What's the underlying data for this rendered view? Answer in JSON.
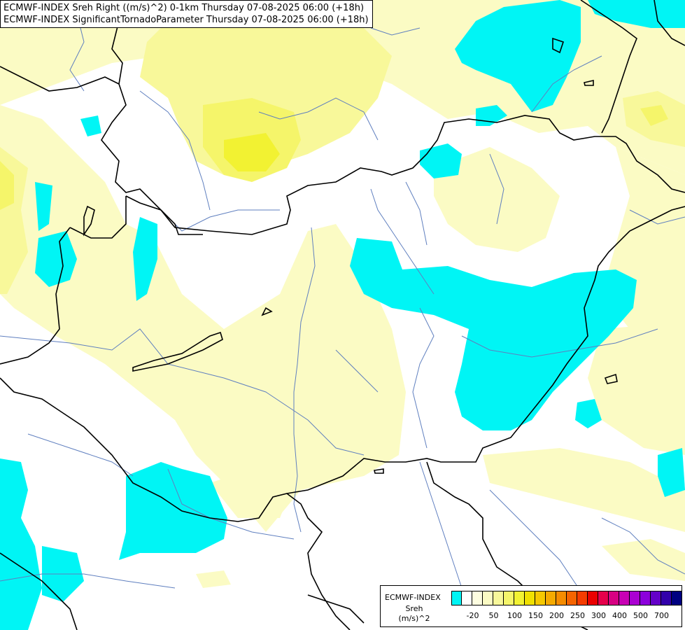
{
  "header": {
    "line1": "ECMWF-INDEX Sreh Right ((m/s)^2) 0-1km Thursday 07-08-2025 06:00 (+18h)",
    "line2": "ECMWF-INDEX SignificantTornadoParameter Thursday 07-08-2025 06:00 (+18h)"
  },
  "legend": {
    "name": "ECMWF-INDEX",
    "variable": "Sreh",
    "unit": "(m/s)^2",
    "colors": [
      "#00f5f5",
      "#ffffff",
      "#fdfde0",
      "#fbfbc4",
      "#f8f89a",
      "#f5f56a",
      "#f2f232",
      "#f0e000",
      "#f5c800",
      "#f5aa00",
      "#f58c00",
      "#f56400",
      "#f53c00",
      "#eb0000",
      "#e6004b",
      "#d70082",
      "#c800b4",
      "#aa00d2",
      "#8c00dc",
      "#6400c8",
      "#3200aa",
      "#000080"
    ],
    "ticks": [
      {
        "label": "-20",
        "index": 1
      },
      {
        "label": "50",
        "index": 3
      },
      {
        "label": "100",
        "index": 5
      },
      {
        "label": "150",
        "index": 7
      },
      {
        "label": "200",
        "index": 9
      },
      {
        "label": "250",
        "index": 11
      },
      {
        "label": "300",
        "index": 13
      },
      {
        "label": "400",
        "index": 15
      },
      {
        "label": "500",
        "index": 17
      },
      {
        "label": "700",
        "index": 19
      }
    ]
  },
  "map": {
    "field_colors": {
      "cyan": "#00f5f5",
      "pale": "#fbfbc4",
      "light_yellow": "#f8f89a",
      "yellow": "#f5f56a",
      "bright": "#f2f232"
    },
    "border_color": "#000000",
    "river_color": "#5f7fbf"
  }
}
